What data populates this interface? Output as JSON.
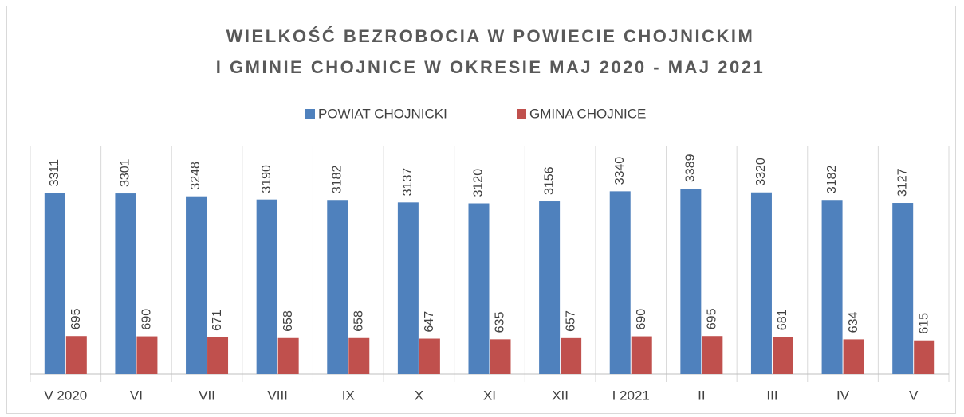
{
  "chart_data": {
    "type": "bar",
    "title": [
      "WIELKOŚĆ BEZROBOCIA W POWIECIE CHOJNICKIM",
      "I GMINIE CHOJNICE W OKRESIE MAJ 2020 - MAJ 2021"
    ],
    "categories": [
      "V 2020",
      "VI",
      "VII",
      "VIII",
      "IX",
      "X",
      "XI",
      "XII",
      "I 2021",
      "II",
      "III",
      "IV",
      "V"
    ],
    "series": [
      {
        "name": "POWIAT CHOJNICKI",
        "color": "#4f81bd",
        "values": [
          3311,
          3301,
          3248,
          3190,
          3182,
          3137,
          3120,
          3156,
          3340,
          3389,
          3320,
          3182,
          3127
        ]
      },
      {
        "name": "GMINA CHOJNICE",
        "color": "#c0504d",
        "values": [
          695,
          690,
          671,
          658,
          658,
          647,
          635,
          657,
          690,
          695,
          681,
          634,
          615
        ]
      }
    ],
    "ylim": [
      0,
      4000
    ],
    "legend": "top"
  }
}
